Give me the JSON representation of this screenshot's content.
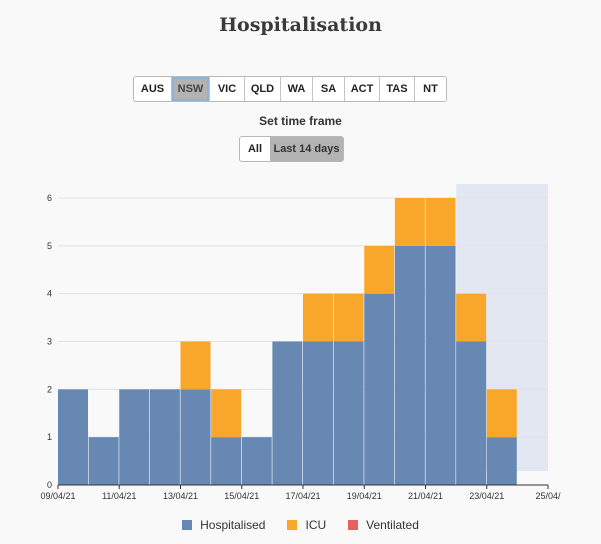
{
  "title": "Hospitalisation",
  "regions": [
    {
      "label": "AUS",
      "active": false
    },
    {
      "label": "NSW",
      "active": true
    },
    {
      "label": "VIC",
      "active": false
    },
    {
      "label": "QLD",
      "active": false
    },
    {
      "label": "WA",
      "active": false
    },
    {
      "label": "SA",
      "active": false
    },
    {
      "label": "ACT",
      "active": false
    },
    {
      "label": "TAS",
      "active": false
    },
    {
      "label": "NT",
      "active": false
    }
  ],
  "timeframe": {
    "label": "Set time frame",
    "options": [
      {
        "label": "All",
        "active": false
      },
      {
        "label": "Last 14 days",
        "active": true
      }
    ]
  },
  "chart_data": {
    "type": "bar",
    "stacked": true,
    "categories": [
      "09/04/21",
      "10/04/21",
      "11/04/21",
      "12/04/21",
      "13/04/21",
      "14/04/21",
      "15/04/21",
      "16/04/21",
      "17/04/21",
      "18/04/21",
      "19/04/21",
      "20/04/21",
      "21/04/21",
      "22/04/21",
      "23/04/21"
    ],
    "series": [
      {
        "name": "Hospitalised",
        "color": "#6688b3",
        "values": [
          2,
          1,
          2,
          2,
          2,
          1,
          1,
          3,
          3,
          3,
          4,
          5,
          5,
          3,
          1
        ]
      },
      {
        "name": "ICU",
        "color": "#f9a72b",
        "values": [
          0,
          0,
          0,
          0,
          1,
          1,
          0,
          0,
          1,
          1,
          1,
          1,
          1,
          1,
          1
        ]
      },
      {
        "name": "Ventilated",
        "color": "#e7625f",
        "values": [
          0,
          0,
          0,
          0,
          0,
          0,
          0,
          0,
          0,
          0,
          0,
          0,
          0,
          0,
          0
        ]
      }
    ],
    "x_tick_labels": [
      "09/04/21",
      "11/04/21",
      "13/04/21",
      "15/04/21",
      "17/04/21",
      "19/04/21",
      "21/04/21",
      "23/04/21",
      "25/04/"
    ],
    "ylim": [
      0,
      6
    ],
    "y_ticks": [
      0,
      1,
      2,
      3,
      4,
      5,
      6
    ],
    "shaded_region": {
      "from": "22/04/21",
      "to": "25/04/21",
      "color": "#e3e7f1"
    },
    "grid": true,
    "legend_position": "bottom"
  }
}
